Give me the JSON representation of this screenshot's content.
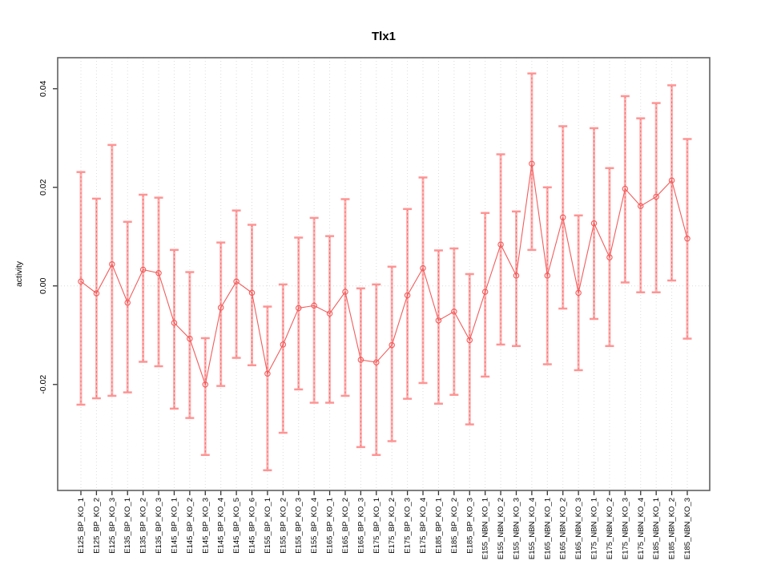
{
  "chart_data": {
    "type": "line",
    "title": "Tlx1",
    "xlabel": "",
    "ylabel": "activity",
    "ylim": [
      -0.0415,
      0.0463
    ],
    "grid": "vertical dotted gridline at every category; dotted horizontal line at y=0; full box frame",
    "legend_position": "none",
    "y_ticks": [
      {
        "label": "-0.02",
        "value": -0.02
      },
      {
        "label": "0.00",
        "value": 0.0
      },
      {
        "label": "0.02",
        "value": 0.02
      },
      {
        "label": "0.04",
        "value": 0.04
      }
    ],
    "categories": [
      "E125_BP_KO_1",
      "E125_BP_KO_2",
      "E125_BP_KO_3",
      "E135_BP_KO_1",
      "E135_BP_KO_2",
      "E135_BP_KO_3",
      "E145_BP_KO_1",
      "E145_BP_KO_2",
      "E145_BP_KO_3",
      "E145_BP_KO_4",
      "E145_BP_KO_5",
      "E145_BP_KO_6",
      "E155_BP_KO_1",
      "E155_BP_KO_2",
      "E155_BP_KO_3",
      "E155_BP_KO_4",
      "E165_BP_KO_1",
      "E165_BP_KO_2",
      "E165_BP_KO_3",
      "E175_BP_KO_1",
      "E175_BP_KO_2",
      "E175_BP_KO_3",
      "E175_BP_KO_4",
      "E185_BP_KO_1",
      "E185_BP_KO_2",
      "E185_BP_KO_3",
      "E155_NBN_KO_1",
      "E155_NBN_KO_2",
      "E155_NBN_KO_3",
      "E155_NBN_KO_4",
      "E165_NBN_KO_1",
      "E165_NBN_KO_2",
      "E165_NBN_KO_3",
      "E175_NBN_KO_1",
      "E175_NBN_KO_2",
      "E175_NBN_KO_3",
      "E175_NBN_KO_4",
      "E185_NBN_KO_1",
      "E185_NBN_KO_2",
      "E185_NBN_KO_3"
    ],
    "series": [
      {
        "name": "activity",
        "marker": "open-circle",
        "values": [
          0.0009,
          -0.0015,
          0.0044,
          -0.0034,
          0.0033,
          0.0026,
          -0.0075,
          -0.0107,
          -0.02,
          -0.0044,
          0.0009,
          -0.0014,
          -0.0178,
          -0.0119,
          -0.0045,
          -0.004,
          -0.0056,
          -0.0012,
          -0.015,
          -0.0155,
          -0.012,
          -0.0019,
          0.0036,
          -0.007,
          -0.0052,
          -0.011,
          -0.0012,
          0.0084,
          0.0021,
          0.0248,
          0.0021,
          0.0139,
          -0.0014,
          0.0127,
          0.0058,
          0.0197,
          0.0162,
          0.0181,
          0.0214,
          0.0096
        ],
        "upper": [
          0.0231,
          0.0177,
          0.0286,
          0.013,
          0.0185,
          0.0179,
          0.0073,
          0.0028,
          -0.0106,
          0.0088,
          0.0153,
          0.0124,
          -0.0042,
          0.0003,
          0.0098,
          0.0138,
          0.0101,
          0.0176,
          -0.0005,
          0.0003,
          0.0039,
          0.0156,
          0.022,
          0.0072,
          0.0076,
          0.0024,
          0.0148,
          0.0267,
          0.0151,
          0.0431,
          0.02,
          0.0324,
          0.0143,
          0.032,
          0.0239,
          0.0385,
          0.034,
          0.0371,
          0.0407,
          0.0298
        ],
        "lower": [
          -0.0241,
          -0.0228,
          -0.0223,
          -0.0216,
          -0.0154,
          -0.0163,
          -0.0249,
          -0.0268,
          -0.0343,
          -0.0203,
          -0.0146,
          -0.0161,
          -0.0374,
          -0.0298,
          -0.021,
          -0.0237,
          -0.0237,
          -0.0223,
          -0.0327,
          -0.0343,
          -0.0315,
          -0.0229,
          -0.0197,
          -0.0239,
          -0.0221,
          -0.0281,
          -0.0184,
          -0.0119,
          -0.0122,
          0.0073,
          -0.0159,
          -0.0046,
          -0.0171,
          -0.0067,
          -0.0122,
          0.0007,
          -0.0013,
          -0.0013,
          0.0011,
          -0.0107
        ]
      }
    ],
    "colors": {
      "series_line": "#f25c5c",
      "marker": "#f25c5c",
      "error_band": "#ffb3b3",
      "error_cap": "#ff9494",
      "error_dash": "#ef6b6b",
      "grid": "#dcdcdc",
      "frame": "#606060",
      "tick": "#333333",
      "text": "#000000"
    }
  }
}
